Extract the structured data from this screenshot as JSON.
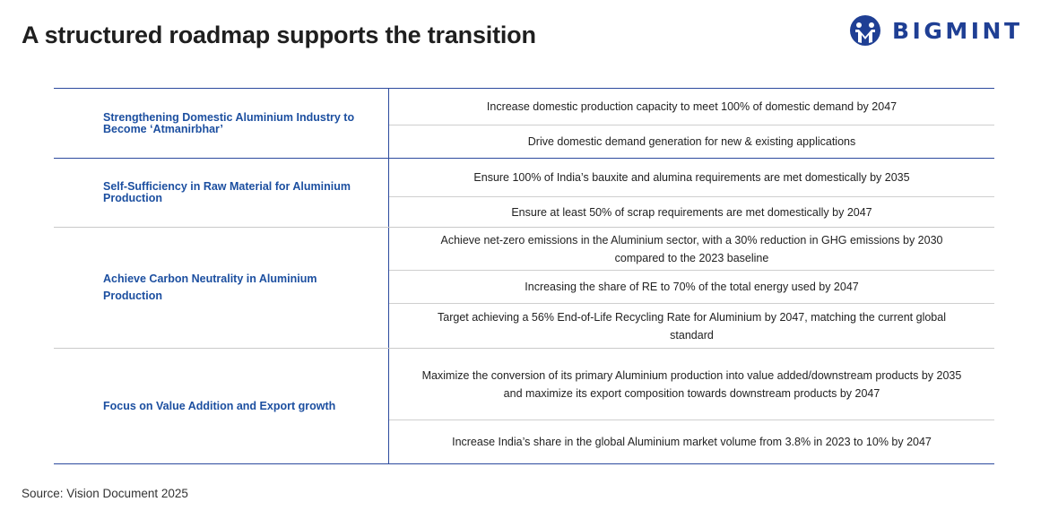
{
  "header": {
    "title": "A structured roadmap supports the transition",
    "logo": {
      "text": "BIGMINT",
      "icon": "bigmint-logo-icon",
      "color": "#1f3f94"
    }
  },
  "roadmap": [
    {
      "pillar": "Strengthening Domestic Aluminium Industry to Become ‘Atmanirbhar’",
      "goals": [
        "Increase domestic production capacity to meet  100% of domestic demand by 2047",
        "Drive domestic demand generation for new & existing applications"
      ]
    },
    {
      "pillar": "Self-Sufficiency in Raw Material for Aluminium Production",
      "goals": [
        "Ensure 100% of India’s bauxite and alumina requirements are met domestically by 2035",
        "Ensure at least 50% of scrap requirements are met domestically by 2047"
      ]
    },
    {
      "pillar": "Achieve Carbon Neutrality in Aluminium Production",
      "goals": [
        "Achieve net-zero emissions in the Aluminium  sector, with a 30% reduction in GHG emissions by 2030 compared to the 2023 baseline",
        "Increasing the share of RE to 70% of the total  energy used by 2047",
        "Target achieving a 56% End-of-Life Recycling Rate for Aluminium by 2047, matching the current global standard"
      ]
    },
    {
      "pillar": "Focus on Value Addition and Export growth",
      "goals": [
        "Maximize the conversion of its primary  Aluminium production into value added/downstream products by 2035 and maximize its export composition towards downstream products by 2047",
        "Increase India’s share in the global Aluminium  market volume from 3.8% in 2023 to 10% by  2047"
      ]
    }
  ],
  "footer": {
    "source": "Source: Vision Document 2025"
  },
  "colors": {
    "accent": "#2c4a9e",
    "pillar_text": "#1c4fa0"
  }
}
